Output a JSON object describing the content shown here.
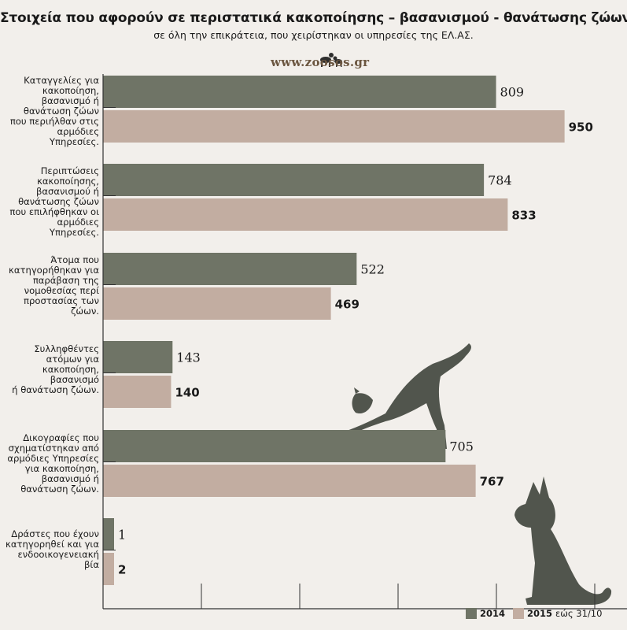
{
  "colors": {
    "background": "#f2efeb",
    "series_2014": "#6f7466",
    "series_2015": "#c2ada1",
    "axis": "#333333",
    "silhouette": "#51554d",
    "logo": "#6b5640"
  },
  "logo": {
    "text": "www.zoosos.gr"
  },
  "legend": {
    "note_2015": "εώς 31/10"
  },
  "chart_data": {
    "type": "bar",
    "orientation": "horizontal",
    "title": "Στοιχεία που αφορούν σε περιστατικά κακοποίησης – βασανισμού - θανάτωσης ζώων",
    "subtitle": "σε όλη την επικράτεια, που χειρίστηκαν οι υπηρεσίες της ΕΛ.ΑΣ.",
    "categories": [
      "Καταγγελίες για\nκακοποίηση,\nβασανισμό ή\nθανάτωση ζώων\nπου περιήλθαν στις\nαρμόδιες Υπηρεσίες.",
      "Περιπτώσεις\nκακοποίησης,\nβασανισμού ή\nθανάτωσης ζώων\nπου επιλήφθηκαν οι\nαρμόδιες Υπηρεσίες.",
      "Άτομα που\nκατηγορήθηκαν για\nπαράβαση της\nνομοθεσίας περί\nπροστασίας των\nζώων.",
      "Συλληφθέντες\nατόμων για\nκακοποίηση,\nβασανισμό\nή θανάτωση ζώων.",
      "Δικογραφίες που\nσχηματίστηκαν από\nαρμόδιες Υπηρεσίες\nγια κακοποίηση,\nβασανισμό ή\nθανάτωση ζώων.",
      "Δράστες που έχουν\nκατηγορηθεί και για\nενδοοικογενειακή\nβία"
    ],
    "series": [
      {
        "name": "2014",
        "values": [
          809,
          784,
          522,
          143,
          705,
          1
        ]
      },
      {
        "name": "2015",
        "values": [
          950,
          833,
          469,
          140,
          767,
          2
        ]
      }
    ],
    "xlim": [
      0,
      1000
    ],
    "grid": false,
    "legend_position": "bottom-right"
  }
}
